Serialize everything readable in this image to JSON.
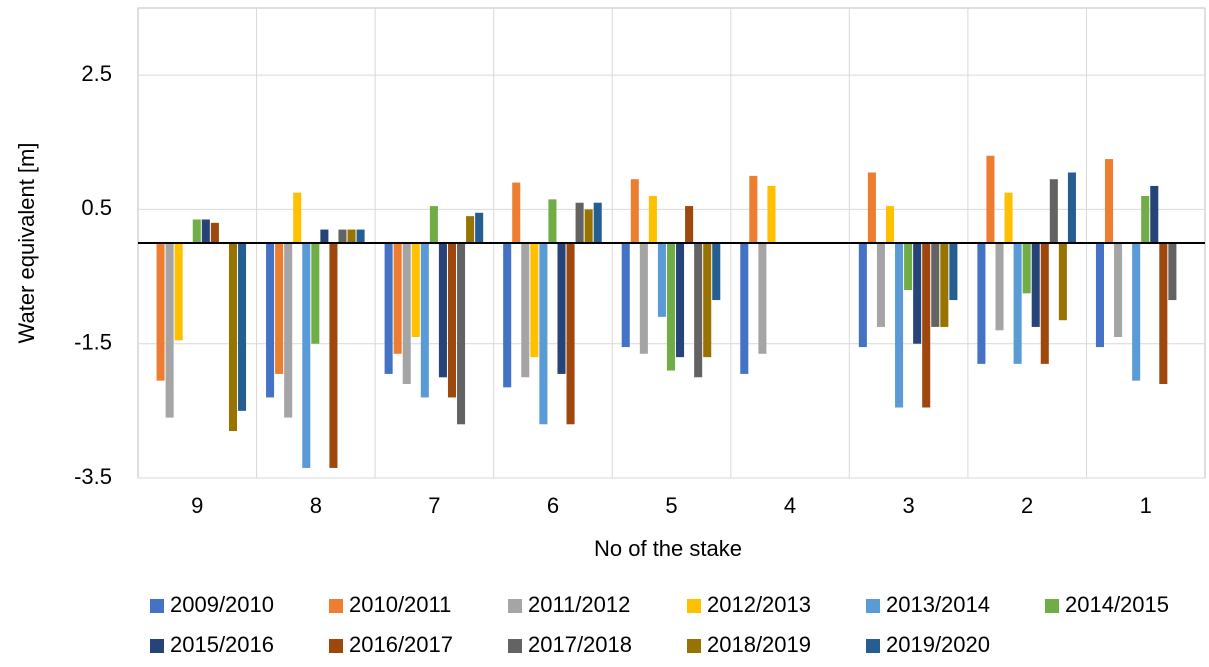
{
  "chart_data": {
    "type": "bar",
    "x_label": "No of the stake",
    "y_label": "Water equivalent [m]",
    "categories": [
      "9",
      "8",
      "7",
      "6",
      "5",
      "4",
      "3",
      "2",
      "1"
    ],
    "ylim": [
      -3.5,
      3.5
    ],
    "yticks": [
      -3.5,
      -1.5,
      0.5,
      2.5
    ],
    "grid": true,
    "series": [
      {
        "name": "2009/2010",
        "color": "#4472c4",
        "values": [
          null,
          -2.3,
          -1.95,
          -2.15,
          -1.55,
          -1.95,
          -1.55,
          -1.8,
          -1.55
        ]
      },
      {
        "name": "2010/2011",
        "color": "#ed7d31",
        "values": [
          -2.05,
          -1.95,
          -1.65,
          0.9,
          0.95,
          1.0,
          1.05,
          1.3,
          1.25
        ]
      },
      {
        "name": "2011/2012",
        "color": "#a5a5a5",
        "values": [
          -2.6,
          -2.6,
          -2.1,
          -2.0,
          -1.65,
          -1.65,
          -1.25,
          -1.3,
          -1.4
        ]
      },
      {
        "name": "2012/2013",
        "color": "#ffc000",
        "values": [
          -1.45,
          0.75,
          -1.4,
          -1.7,
          0.7,
          0.85,
          0.55,
          0.75,
          null
        ]
      },
      {
        "name": "2013/2014",
        "color": "#5b9bd5",
        "values": [
          null,
          -3.35,
          -2.3,
          -2.7,
          -1.1,
          null,
          -2.45,
          -1.8,
          -2.05
        ]
      },
      {
        "name": "2014/2015",
        "color": "#70ad47",
        "values": [
          0.35,
          -1.5,
          0.55,
          0.65,
          -1.9,
          null,
          -0.7,
          -0.75,
          0.7
        ]
      },
      {
        "name": "2015/2016",
        "color": "#264478",
        "values": [
          0.35,
          0.2,
          -2.0,
          -1.95,
          -1.7,
          null,
          -1.5,
          -1.25,
          0.85
        ]
      },
      {
        "name": "2016/2017",
        "color": "#9e480e",
        "values": [
          0.3,
          -3.35,
          -2.3,
          -2.7,
          0.55,
          null,
          -2.45,
          -1.8,
          -2.1
        ]
      },
      {
        "name": "2017/2018",
        "color": "#636363",
        "values": [
          null,
          0.2,
          -2.7,
          0.6,
          -2.0,
          null,
          -1.25,
          0.95,
          -0.85
        ]
      },
      {
        "name": "2018/2019",
        "color": "#997300",
        "values": [
          -2.8,
          0.2,
          0.4,
          0.5,
          -1.7,
          null,
          -1.25,
          -1.15,
          null
        ]
      },
      {
        "name": "2019/2020",
        "color": "#255e91",
        "values": [
          -2.5,
          0.2,
          0.45,
          0.6,
          -0.85,
          null,
          -0.85,
          1.05,
          null
        ]
      }
    ]
  }
}
